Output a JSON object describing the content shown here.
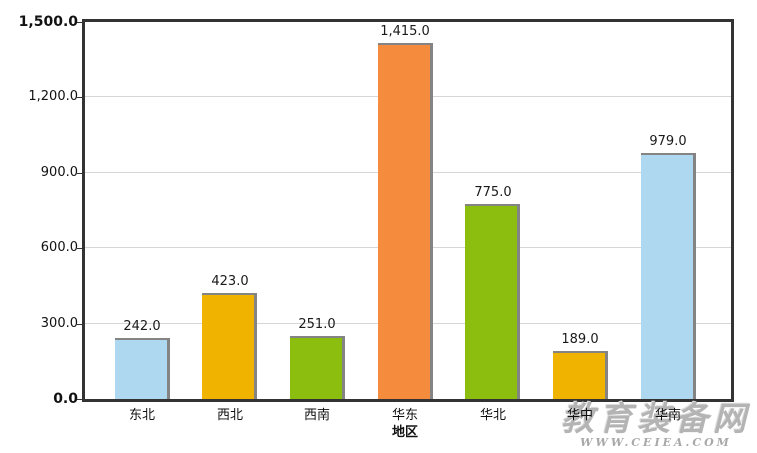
{
  "chart_data": {
    "type": "bar",
    "title": "",
    "xlabel": "地区",
    "ylabel": "",
    "categories": [
      "东北",
      "西北",
      "西南",
      "华东",
      "华北",
      "华中",
      "华南"
    ],
    "values": [
      242.0,
      423.0,
      251.0,
      1415.0,
      775.0,
      189.0,
      979.0
    ],
    "value_labels": [
      "242.0",
      "423.0",
      "251.0",
      "1,415.0",
      "775.0",
      "189.0",
      "979.0"
    ],
    "bar_colors": [
      "#AED7F0",
      "#F0B400",
      "#8CBE0F",
      "#F58B3C",
      "#8CBE0F",
      "#F0B400",
      "#AED7F0"
    ],
    "ylim": [
      0,
      1500
    ],
    "ytick_interval": 300,
    "ytick_labels": [
      "0.0",
      "300.0",
      "600.0",
      "900.0",
      "1,200.0",
      "1,500.0"
    ],
    "grid": true,
    "legend": "none"
  },
  "watermark": {
    "line1": "教育装备网",
    "line2": "WWW.CEIEA.COM"
  },
  "colors": {
    "axis": "#333333",
    "grid": "#d6d6d6",
    "bar_shadow": "#848484",
    "text": "#1a1a1a"
  }
}
